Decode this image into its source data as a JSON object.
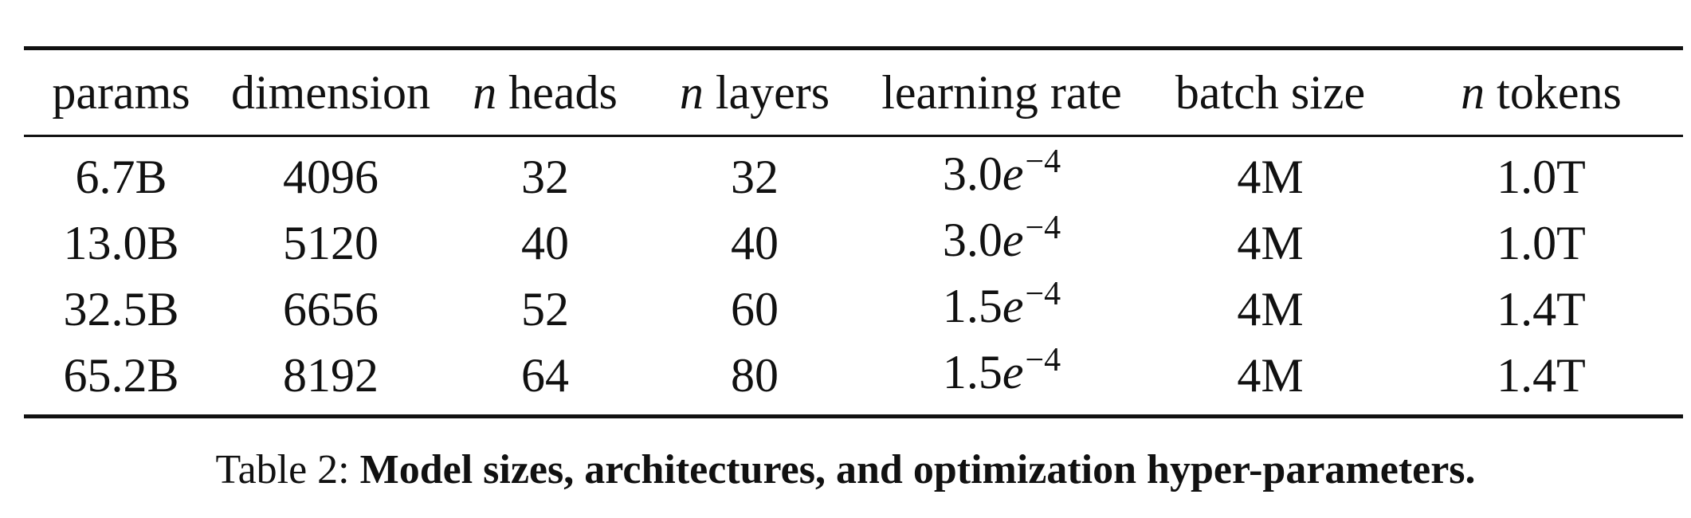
{
  "table": {
    "headers": [
      {
        "prefix": "",
        "text": "params"
      },
      {
        "prefix": "",
        "text": "dimension"
      },
      {
        "prefix": "n",
        "text": " heads"
      },
      {
        "prefix": "n",
        "text": " layers"
      },
      {
        "prefix": "",
        "text": "learning rate"
      },
      {
        "prefix": "",
        "text": "batch size"
      },
      {
        "prefix": "n",
        "text": " tokens"
      }
    ],
    "rows": [
      {
        "params": "6.7B",
        "dimension": "4096",
        "heads": "32",
        "layers": "32",
        "lr_mantissa": "3.0",
        "lr_e": "e",
        "lr_exp": "−4",
        "batch": "4M",
        "tokens": "1.0T"
      },
      {
        "params": "13.0B",
        "dimension": "5120",
        "heads": "40",
        "layers": "40",
        "lr_mantissa": "3.0",
        "lr_e": "e",
        "lr_exp": "−4",
        "batch": "4M",
        "tokens": "1.0T"
      },
      {
        "params": "32.5B",
        "dimension": "6656",
        "heads": "52",
        "layers": "60",
        "lr_mantissa": "1.5",
        "lr_e": "e",
        "lr_exp": "−4",
        "batch": "4M",
        "tokens": "1.4T"
      },
      {
        "params": "65.2B",
        "dimension": "8192",
        "heads": "64",
        "layers": "80",
        "lr_mantissa": "1.5",
        "lr_e": "e",
        "lr_exp": "−4",
        "batch": "4M",
        "tokens": "1.4T"
      }
    ]
  },
  "caption": {
    "label": "Table 2: ",
    "text": "Model sizes, architectures, and optimization hyper-parameters."
  }
}
